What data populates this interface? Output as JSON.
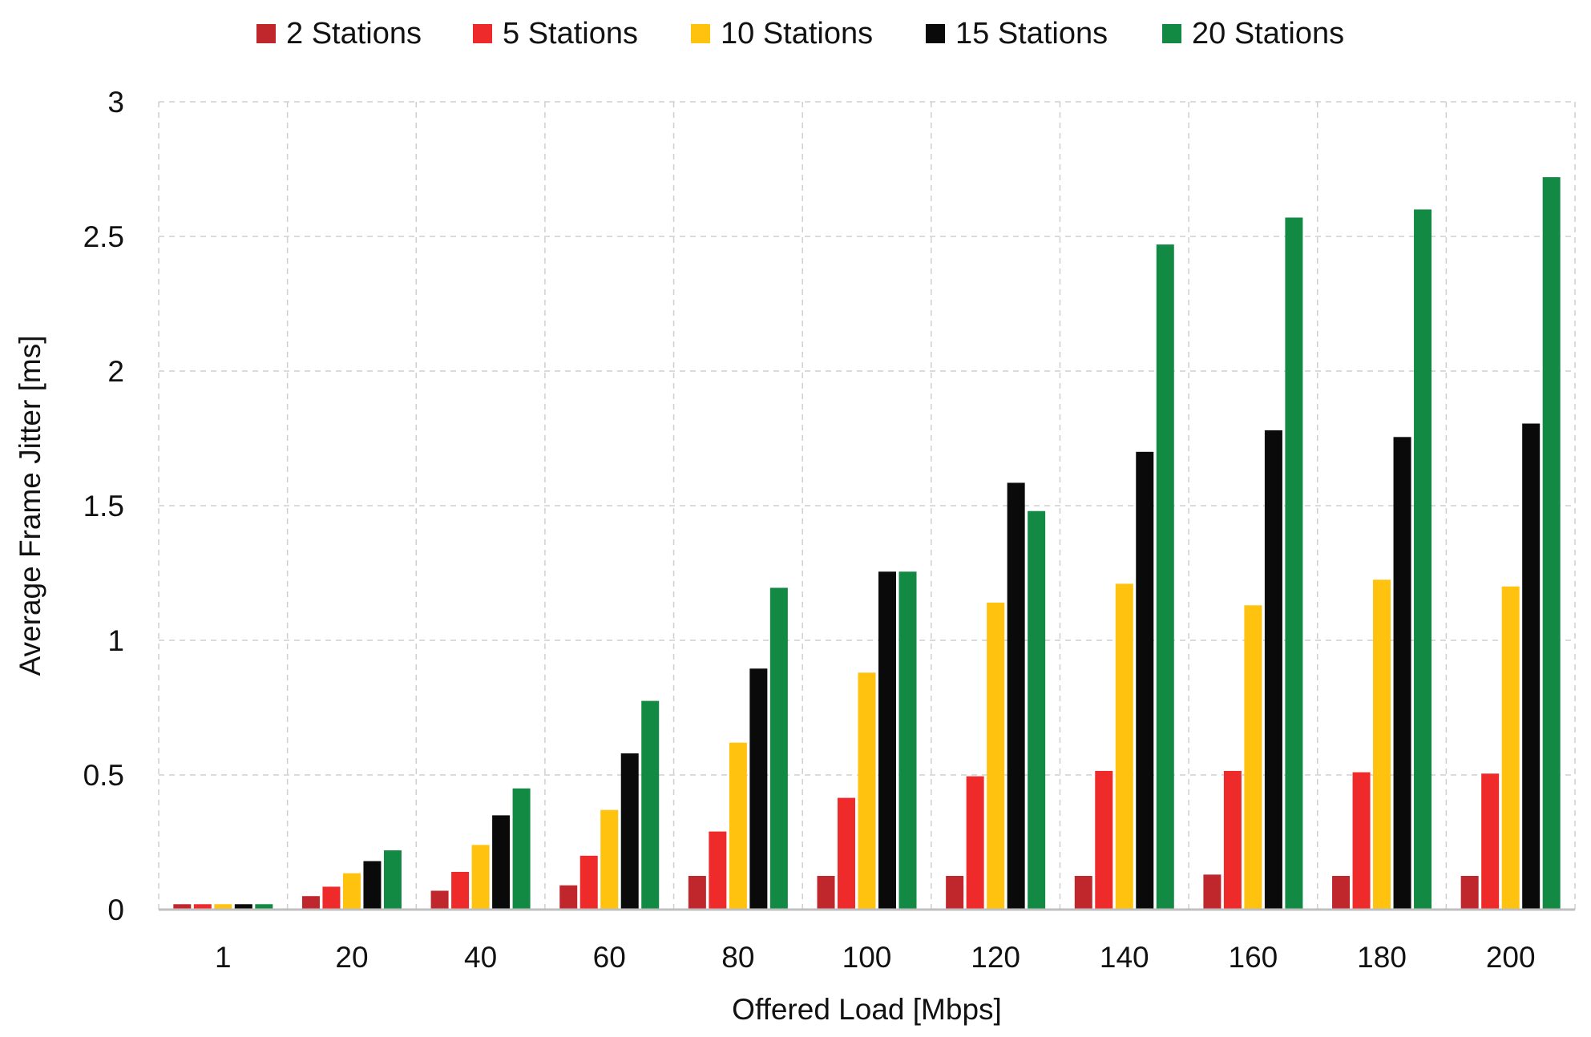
{
  "chart_data": {
    "type": "bar",
    "title": "",
    "xlabel": "Offered Load [Mbps]",
    "ylabel": "Average Frame Jitter [ms]",
    "ylim": [
      0,
      3
    ],
    "yticks": [
      "0",
      "0.5",
      "1",
      "1.5",
      "2",
      "2.5",
      "3"
    ],
    "ytick_values": [
      0,
      0.5,
      1,
      1.5,
      2,
      2.5,
      3
    ],
    "grid": true,
    "legend_position": "top-center",
    "categories": [
      "1",
      "20",
      "40",
      "60",
      "80",
      "100",
      "120",
      "140",
      "160",
      "180",
      "200"
    ],
    "series": [
      {
        "name": "2 Stations",
        "color": "#c0272d",
        "values": [
          0.02,
          0.05,
          0.07,
          0.09,
          0.125,
          0.125,
          0.125,
          0.125,
          0.13,
          0.125,
          0.125
        ]
      },
      {
        "name": "5 Stations",
        "color": "#ee2a2a",
        "values": [
          0.02,
          0.085,
          0.14,
          0.2,
          0.29,
          0.415,
          0.495,
          0.515,
          0.515,
          0.51,
          0.505
        ]
      },
      {
        "name": "10 Stations",
        "color": "#ffc20e",
        "values": [
          0.02,
          0.135,
          0.24,
          0.37,
          0.62,
          0.88,
          1.14,
          1.21,
          1.13,
          1.225,
          1.2
        ]
      },
      {
        "name": "15 Stations",
        "color": "#0a0a0a",
        "values": [
          0.02,
          0.18,
          0.35,
          0.58,
          0.895,
          1.255,
          1.585,
          1.7,
          1.78,
          1.755,
          1.805
        ]
      },
      {
        "name": "20 Stations",
        "color": "#138a43",
        "values": [
          0.02,
          0.22,
          0.45,
          0.775,
          1.195,
          1.255,
          1.48,
          2.47,
          2.57,
          2.6,
          2.72
        ]
      }
    ]
  }
}
